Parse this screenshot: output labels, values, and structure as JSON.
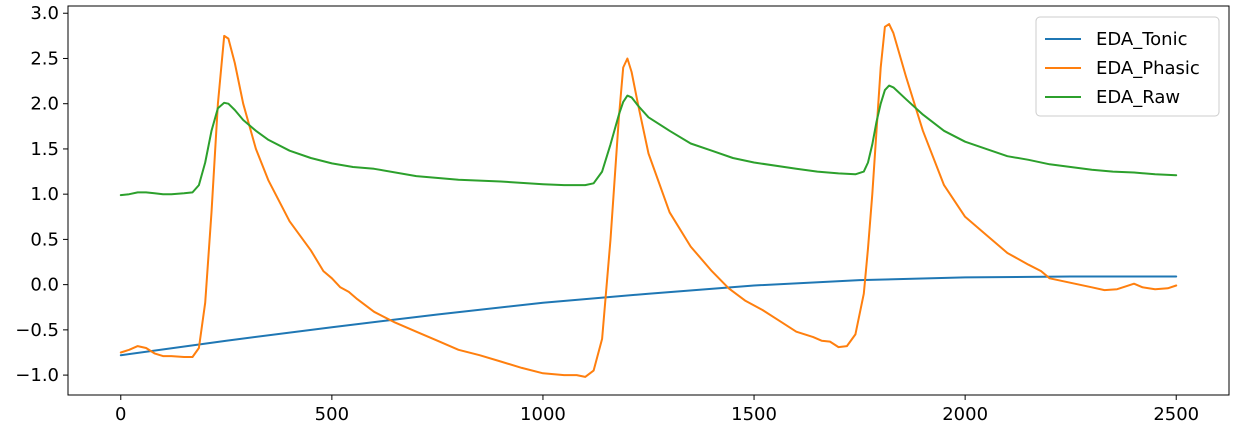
{
  "chart_data": {
    "type": "line",
    "title": "",
    "xlabel": "",
    "ylabel": "",
    "xlim": [
      -125,
      2625
    ],
    "ylim": [
      -1.22,
      3.08
    ],
    "xticks": [
      0,
      500,
      1000,
      1500,
      2000,
      2500
    ],
    "yticks": [
      -1.0,
      -0.5,
      0.0,
      0.5,
      1.0,
      1.5,
      2.0,
      2.5,
      3.0
    ],
    "xtick_labels": [
      "0",
      "500",
      "1000",
      "1500",
      "2000",
      "2500"
    ],
    "ytick_labels": [
      "−1.0",
      "−0.5",
      "0.0",
      "0.5",
      "1.0",
      "1.5",
      "2.0",
      "2.5",
      "3.0"
    ],
    "grid": false,
    "legend_position": "top-right",
    "series": [
      {
        "name": "EDA_Tonic",
        "color": "#1f77b4",
        "x": [
          0,
          250,
          500,
          750,
          1000,
          1250,
          1500,
          1750,
          2000,
          2250,
          2500
        ],
        "y": [
          -0.78,
          -0.62,
          -0.47,
          -0.33,
          -0.2,
          -0.1,
          -0.01,
          0.05,
          0.08,
          0.09,
          0.09
        ]
      },
      {
        "name": "EDA_Phasic",
        "color": "#ff7f0e",
        "x": [
          0,
          20,
          40,
          60,
          80,
          100,
          120,
          150,
          170,
          185,
          200,
          215,
          230,
          245,
          255,
          270,
          290,
          320,
          350,
          400,
          450,
          480,
          500,
          520,
          540,
          560,
          600,
          650,
          700,
          750,
          800,
          850,
          900,
          950,
          1000,
          1050,
          1080,
          1100,
          1120,
          1140,
          1160,
          1180,
          1190,
          1200,
          1210,
          1225,
          1250,
          1300,
          1350,
          1400,
          1440,
          1480,
          1520,
          1560,
          1600,
          1640,
          1660,
          1680,
          1700,
          1720,
          1740,
          1760,
          1770,
          1780,
          1790,
          1800,
          1810,
          1820,
          1830,
          1860,
          1900,
          1950,
          2000,
          2050,
          2100,
          2150,
          2180,
          2200,
          2250,
          2300,
          2330,
          2360,
          2380,
          2400,
          2420,
          2450,
          2480,
          2500
        ],
        "y": [
          -0.75,
          -0.72,
          -0.68,
          -0.7,
          -0.76,
          -0.79,
          -0.79,
          -0.8,
          -0.8,
          -0.7,
          -0.2,
          0.8,
          2.0,
          2.75,
          2.72,
          2.45,
          2.0,
          1.5,
          1.15,
          0.7,
          0.38,
          0.15,
          0.07,
          -0.03,
          -0.08,
          -0.16,
          -0.3,
          -0.42,
          -0.52,
          -0.62,
          -0.72,
          -0.78,
          -0.85,
          -0.92,
          -0.98,
          -1.0,
          -1.0,
          -1.02,
          -0.95,
          -0.6,
          0.5,
          1.85,
          2.4,
          2.5,
          2.35,
          2.0,
          1.45,
          0.8,
          0.42,
          0.15,
          -0.04,
          -0.18,
          -0.28,
          -0.4,
          -0.52,
          -0.58,
          -0.62,
          -0.63,
          -0.69,
          -0.68,
          -0.55,
          -0.1,
          0.4,
          1.0,
          1.7,
          2.4,
          2.85,
          2.88,
          2.78,
          2.3,
          1.7,
          1.1,
          0.75,
          0.55,
          0.35,
          0.22,
          0.15,
          0.07,
          0.02,
          -0.03,
          -0.06,
          -0.05,
          -0.02,
          0.01,
          -0.03,
          -0.05,
          -0.04,
          -0.01
        ]
      },
      {
        "name": "EDA_Raw",
        "color": "#2ca02c",
        "x": [
          0,
          20,
          40,
          60,
          80,
          100,
          120,
          150,
          170,
          185,
          200,
          215,
          230,
          245,
          255,
          270,
          290,
          320,
          350,
          400,
          450,
          500,
          550,
          600,
          700,
          800,
          900,
          1000,
          1050,
          1080,
          1100,
          1120,
          1140,
          1160,
          1180,
          1190,
          1200,
          1210,
          1225,
          1250,
          1300,
          1350,
          1400,
          1450,
          1500,
          1600,
          1650,
          1700,
          1740,
          1760,
          1770,
          1780,
          1790,
          1800,
          1810,
          1820,
          1830,
          1860,
          1900,
          1950,
          2000,
          2050,
          2100,
          2150,
          2200,
          2250,
          2300,
          2350,
          2400,
          2450,
          2500
        ],
        "y": [
          0.99,
          1.0,
          1.02,
          1.02,
          1.01,
          1.0,
          1.0,
          1.01,
          1.02,
          1.1,
          1.35,
          1.7,
          1.95,
          2.01,
          2.0,
          1.93,
          1.82,
          1.7,
          1.6,
          1.48,
          1.4,
          1.34,
          1.3,
          1.28,
          1.2,
          1.16,
          1.14,
          1.11,
          1.1,
          1.1,
          1.1,
          1.12,
          1.25,
          1.55,
          1.88,
          2.02,
          2.09,
          2.07,
          1.98,
          1.85,
          1.7,
          1.56,
          1.48,
          1.4,
          1.35,
          1.28,
          1.25,
          1.23,
          1.22,
          1.25,
          1.35,
          1.55,
          1.8,
          2.0,
          2.15,
          2.2,
          2.18,
          2.05,
          1.88,
          1.7,
          1.58,
          1.5,
          1.42,
          1.38,
          1.33,
          1.3,
          1.27,
          1.25,
          1.24,
          1.22,
          1.21
        ]
      }
    ]
  }
}
